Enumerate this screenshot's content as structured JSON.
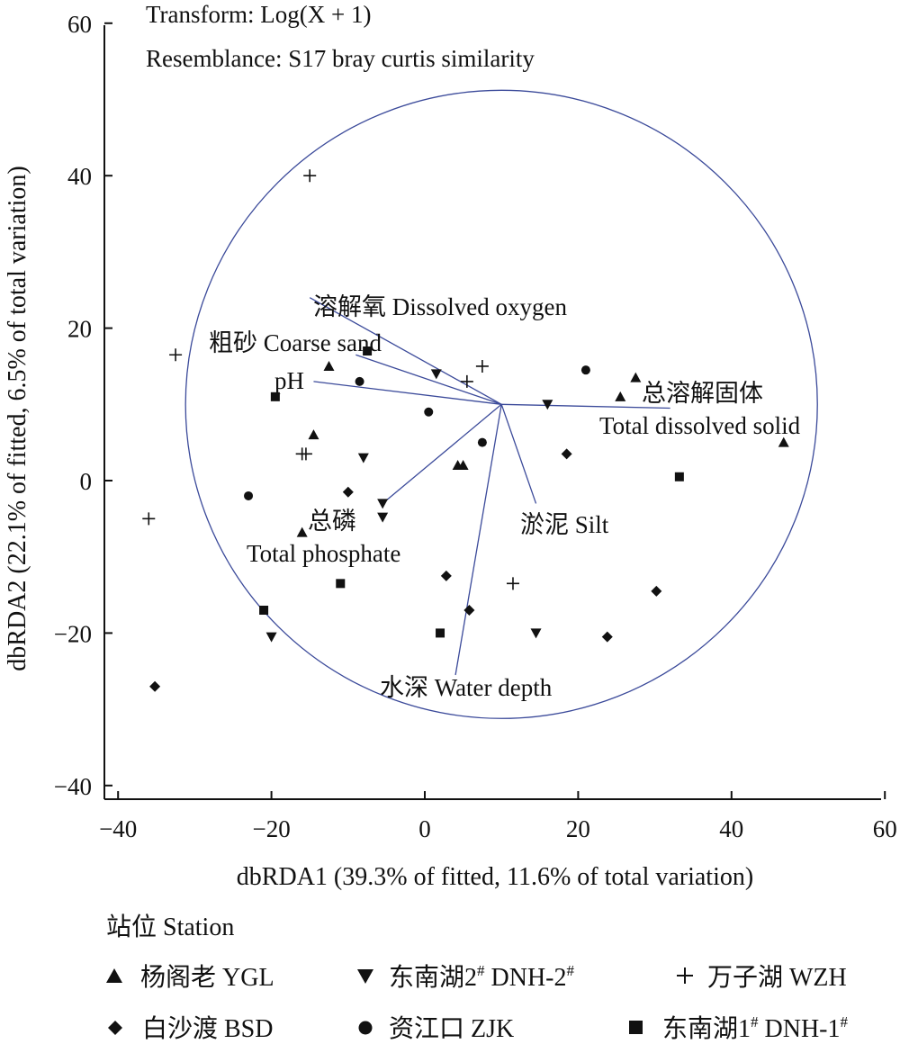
{
  "chart_data": {
    "type": "scatter",
    "annotations": [
      "Transform: Log(X + 1)",
      "Resemblance: S17 bray curtis similarity"
    ],
    "xlabel": "dbRDA1 (39.3% of fitted, 11.6% of total variation)",
    "ylabel": "dbRDA2 (22.1% of fitted, 6.5% of total variation)",
    "xlim": [
      -41,
      60
    ],
    "ylim": [
      -41,
      60
    ],
    "xticks": [
      -40,
      -20,
      0,
      20,
      40,
      60
    ],
    "yticks": [
      -40,
      -20,
      0,
      20,
      40,
      60
    ],
    "xtick_labels": [
      "−40",
      "−20",
      "0",
      "20",
      "40",
      "60"
    ],
    "ytick_labels": [
      "−40",
      "−20",
      "0",
      "20",
      "40",
      "60"
    ],
    "grid": false,
    "circle": {
      "center": [
        10,
        10
      ],
      "radius": 41.2
    },
    "vectors": [
      {
        "label": "溶解氧 Dissolved oxygen",
        "end": [
          -15,
          24
        ]
      },
      {
        "label": "粗砂 Coarse sand",
        "end": [
          -9,
          16.5
        ]
      },
      {
        "label": "pH",
        "end": [
          -14.5,
          13
        ]
      },
      {
        "label": "总溶解固体",
        "label2": "Total dissolved solid",
        "end": [
          32,
          9.5
        ]
      },
      {
        "label": "淤泥 Silt",
        "end": [
          14.5,
          -3
        ]
      },
      {
        "label": "总磷",
        "label2": "Total phosphate",
        "end": [
          -5.5,
          -3
        ]
      },
      {
        "label": "水深 Water depth",
        "end": [
          4,
          -25.5
        ]
      }
    ],
    "legend_title": "站位 Station",
    "legend_position": "bottom",
    "series": [
      {
        "name": "杨阁老 YGL",
        "marker": "triangle-up",
        "x": [
          -12.5,
          -14.5,
          25.5,
          27.5,
          46.8,
          4.3,
          5,
          -16
        ],
        "y": [
          15,
          6,
          11,
          13.5,
          5,
          2,
          2,
          -6.8
        ]
      },
      {
        "name": "东南湖2# DNH-2#",
        "marker": "triangle-down",
        "x": [
          1.5,
          16,
          -8,
          -5.5,
          -5.5,
          -20,
          14.5
        ],
        "y": [
          14,
          10,
          3,
          -3,
          -4.8,
          -20.5,
          -20
        ]
      },
      {
        "name": "万子湖 WZH",
        "marker": "plus",
        "x": [
          -15,
          -32.5,
          7.5,
          5.5,
          -16,
          -15.5,
          -36,
          11.5
        ],
        "y": [
          40,
          16.5,
          15,
          13,
          3.5,
          3.5,
          -5,
          -13.5
        ]
      },
      {
        "name": "白沙渡 BSD",
        "marker": "diamond",
        "x": [
          -10,
          2.8,
          5.8,
          18.5,
          30.2,
          23.8,
          -35.2
        ],
        "y": [
          -1.5,
          -12.5,
          -17,
          3.5,
          -14.5,
          -20.5,
          -27
        ]
      },
      {
        "name": "资江口 ZJK",
        "marker": "circle",
        "x": [
          -23,
          -8.5,
          0.5,
          7.5,
          21
        ],
        "y": [
          -2,
          13,
          9,
          5,
          14.5
        ]
      },
      {
        "name": "东南湖1# DNH-1#",
        "marker": "square",
        "x": [
          -19.5,
          -7.5,
          33.2,
          -11,
          -21,
          2
        ],
        "y": [
          11,
          17,
          0.5,
          -13.5,
          -17,
          -20
        ]
      }
    ]
  },
  "legend_items": [
    {
      "name": "杨阁老 YGL",
      "marker": "triangle-up"
    },
    {
      "name": "东南湖2",
      "sup": "#",
      "code": " DNH-2",
      "sup2": "#",
      "marker": "triangle-down"
    },
    {
      "name": "万子湖 WZH",
      "marker": "plus"
    },
    {
      "name": "白沙渡 BSD",
      "marker": "diamond"
    },
    {
      "name": "资江口 ZJK",
      "marker": "circle"
    },
    {
      "name": "东南湖1",
      "sup": "#",
      "code": " DNH-1",
      "sup2": "#",
      "marker": "square"
    }
  ],
  "colors": {
    "circle": "#3b4a9a",
    "vector": "#3b4a9a",
    "axis": "#111111",
    "marker": "#111111"
  }
}
